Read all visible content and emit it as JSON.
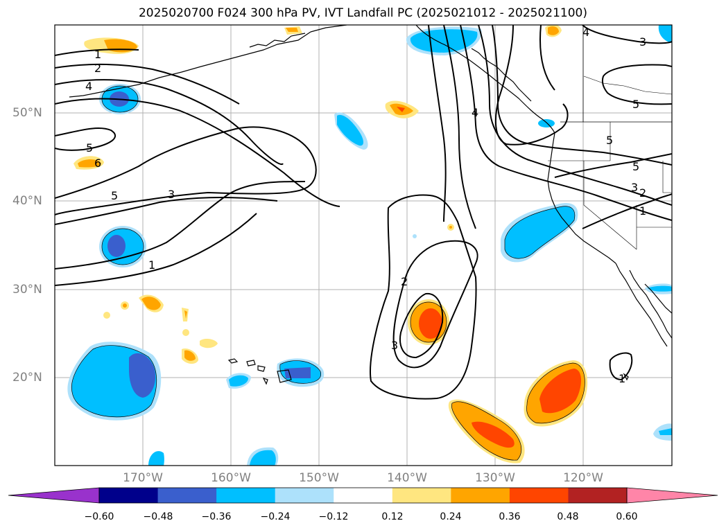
{
  "title": "2025020700 F024 300 hPa PV, IVT Landfall PC (2025021012 - 2025021100)",
  "map": {
    "lat_labels": [
      {
        "text": "50°N",
        "lat": 50
      },
      {
        "text": "40°N",
        "lat": 40
      },
      {
        "text": "30°N",
        "lat": 30
      },
      {
        "text": "20°N",
        "lat": 20
      }
    ],
    "lon_labels": [
      {
        "text": "170°W",
        "lon": -170
      },
      {
        "text": "160°W",
        "lon": -160
      },
      {
        "text": "150°W",
        "lon": -150
      },
      {
        "text": "140°W",
        "lon": -140
      },
      {
        "text": "130°W",
        "lon": -130
      },
      {
        "text": "120°W",
        "lon": -120
      }
    ],
    "extent": {
      "lon_min": -180,
      "lon_max": -110,
      "lat_min": 10,
      "lat_max": 60
    },
    "gridlines": true,
    "contour_labels": [
      "1",
      "2",
      "4",
      "5",
      "6",
      "5",
      "3",
      "1",
      "5",
      "3",
      "2",
      "3",
      "4",
      "5",
      "5",
      "3",
      "2",
      "1",
      "3",
      "1",
      "4"
    ]
  },
  "colorbar": {
    "ticks": [
      "−0.60",
      "−0.48",
      "−0.36",
      "−0.24",
      "−0.12",
      "0.12",
      "0.24",
      "0.36",
      "0.48",
      "0.60"
    ],
    "colors": [
      "#9932CC",
      "#00008B",
      "#3A5FCD",
      "#00BFFF",
      "#ADE1FB",
      "#FFFFFF",
      "#FFE680",
      "#FFA500",
      "#FF4500",
      "#B22222",
      "#FF85A8"
    ],
    "extend": "both"
  },
  "colors": {
    "land_outline": "#000000",
    "grid": "#b0b0b0",
    "label_gray": "#808080"
  }
}
